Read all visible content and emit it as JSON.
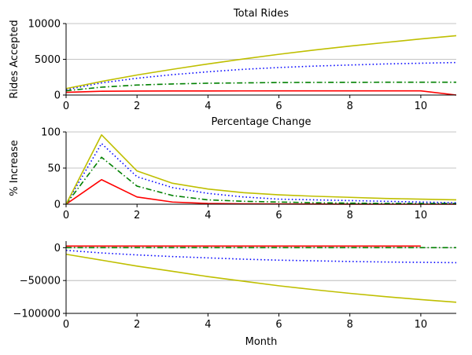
{
  "chart_data": [
    {
      "type": "line",
      "title": "Total Rides",
      "xlabel": "",
      "ylabel": "Rides Accepted",
      "xlim": [
        0,
        11
      ],
      "ylim": [
        0,
        10000
      ],
      "xticks": [
        0,
        2,
        4,
        6,
        8,
        10
      ],
      "xtick_labels": [
        "0",
        "2",
        "4",
        "6",
        "8",
        "10"
      ],
      "yticks": [
        0,
        5000,
        10000
      ],
      "ytick_labels": [
        "0",
        "5000",
        "10000"
      ],
      "grid": "y",
      "series": [
        {
          "color": "#ff0000",
          "style": "solid",
          "x": [
            0,
            1,
            2,
            3,
            4,
            5,
            6,
            7,
            8,
            9,
            10,
            11
          ],
          "y": [
            380,
            530,
            560,
            570,
            575,
            578,
            580,
            580,
            580,
            580,
            580,
            0
          ]
        },
        {
          "color": "#008000",
          "style": "dashdot",
          "x": [
            0,
            1,
            2,
            3,
            4,
            5,
            6,
            7,
            8,
            9,
            10,
            11
          ],
          "y": [
            600,
            1100,
            1400,
            1550,
            1650,
            1700,
            1750,
            1770,
            1780,
            1790,
            1790,
            1790
          ]
        },
        {
          "color": "#0000ff",
          "style": "dotted",
          "x": [
            0,
            1,
            2,
            3,
            4,
            5,
            6,
            7,
            8,
            9,
            10,
            11
          ],
          "y": [
            750,
            1700,
            2350,
            2850,
            3250,
            3600,
            3850,
            4050,
            4200,
            4350,
            4450,
            4550
          ]
        },
        {
          "color": "#bfbf00",
          "style": "solid",
          "x": [
            0,
            1,
            2,
            3,
            4,
            5,
            6,
            7,
            8,
            9,
            10,
            11
          ],
          "y": [
            900,
            1900,
            2800,
            3600,
            4350,
            5050,
            5700,
            6300,
            6850,
            7350,
            7850,
            8300
          ]
        }
      ]
    },
    {
      "type": "line",
      "title": "Percentage Change",
      "xlabel": "",
      "ylabel": "% Increase",
      "xlim": [
        0,
        11
      ],
      "ylim": [
        0,
        100
      ],
      "xticks": [
        0,
        2,
        4,
        6,
        8,
        10
      ],
      "xtick_labels": [
        "0",
        "2",
        "4",
        "6",
        "8",
        "10"
      ],
      "yticks": [
        0,
        50,
        100
      ],
      "ytick_labels": [
        "0",
        "50",
        "100"
      ],
      "grid": "y",
      "series": [
        {
          "color": "#ff0000",
          "style": "solid",
          "x": [
            0,
            1,
            2,
            3,
            4,
            5,
            6,
            7,
            8,
            9,
            10,
            11
          ],
          "y": [
            0,
            34,
            10,
            3,
            1,
            0.5,
            0.3,
            0.2,
            0.1,
            0,
            0,
            0
          ]
        },
        {
          "color": "#008000",
          "style": "dashdot",
          "x": [
            0,
            1,
            2,
            3,
            4,
            5,
            6,
            7,
            8,
            9,
            10,
            11
          ],
          "y": [
            0,
            65,
            25,
            12,
            6,
            4,
            3,
            2,
            1.5,
            1,
            1,
            1
          ]
        },
        {
          "color": "#0000ff",
          "style": "dotted",
          "x": [
            0,
            1,
            2,
            3,
            4,
            5,
            6,
            7,
            8,
            9,
            10,
            11
          ],
          "y": [
            0,
            84,
            38,
            23,
            15,
            10,
            7,
            6,
            5,
            4,
            3,
            2
          ]
        },
        {
          "color": "#bfbf00",
          "style": "solid",
          "x": [
            0,
            1,
            2,
            3,
            4,
            5,
            6,
            7,
            8,
            9,
            10,
            11
          ],
          "y": [
            0,
            96,
            46,
            29,
            21,
            16,
            13,
            11,
            9.5,
            8,
            7,
            6
          ]
        }
      ]
    },
    {
      "type": "line",
      "title": "",
      "xlabel": "Month",
      "ylabel": "",
      "xlim": [
        0,
        11
      ],
      "ylim": [
        -100000,
        10000
      ],
      "xticks": [
        0,
        2,
        4,
        6,
        8,
        10
      ],
      "xtick_labels": [
        "0",
        "2",
        "4",
        "6",
        "8",
        "10"
      ],
      "yticks": [
        -100000,
        -50000,
        0
      ],
      "ytick_labels": [
        "−100000",
        "−50000",
        "0"
      ],
      "grid": "y",
      "series": [
        {
          "color": "#ff0000",
          "style": "solid",
          "x": [
            0,
            1,
            2,
            3,
            4,
            5,
            6,
            7,
            8,
            9,
            10
          ],
          "y": [
            2500,
            2500,
            2500,
            2500,
            2500,
            2500,
            2500,
            2500,
            2500,
            2500,
            2500
          ]
        },
        {
          "color": "#008000",
          "style": "dashdot",
          "x": [
            0,
            1,
            2,
            3,
            4,
            5,
            6,
            7,
            8,
            9,
            10,
            11
          ],
          "y": [
            0,
            0,
            0,
            0,
            0,
            0,
            0,
            0,
            0,
            0,
            0,
            0
          ]
        },
        {
          "color": "#0000ff",
          "style": "dotted",
          "x": [
            0,
            1,
            2,
            3,
            4,
            5,
            6,
            7,
            8,
            9,
            10,
            11
          ],
          "y": [
            -4000,
            -8000,
            -11000,
            -13500,
            -15500,
            -17500,
            -19000,
            -20000,
            -21000,
            -21800,
            -22300,
            -22800
          ]
        },
        {
          "color": "#bfbf00",
          "style": "solid",
          "x": [
            0,
            1,
            2,
            3,
            4,
            5,
            6,
            7,
            8,
            9,
            10,
            11
          ],
          "y": [
            -10000,
            -19000,
            -28000,
            -36000,
            -44000,
            -51000,
            -58000,
            -64000,
            -69500,
            -74500,
            -79000,
            -83000
          ]
        }
      ]
    }
  ]
}
